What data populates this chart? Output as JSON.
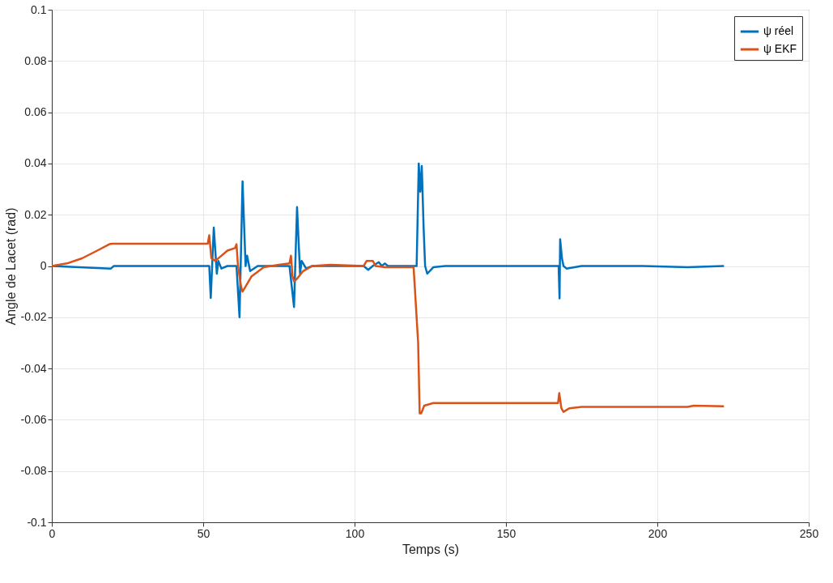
{
  "chart_data": {
    "type": "line",
    "xlabel": "Temps (s)",
    "ylabel": "Angle de Lacet (rad)",
    "xlim": [
      0,
      250
    ],
    "ylim": [
      -0.1,
      0.1
    ],
    "xticks": [
      0,
      50,
      100,
      150,
      200,
      250
    ],
    "yticks": [
      -0.1,
      -0.08,
      -0.06,
      -0.04,
      -0.02,
      0,
      0.02,
      0.04,
      0.06,
      0.08,
      0.1
    ],
    "grid": true,
    "legend": "top right",
    "line_style": "solid",
    "marker": "none",
    "series": [
      {
        "name": "ψ réel",
        "color": "#0072bd",
        "x": [
          0,
          19.5,
          20.5,
          52,
          52.5,
          53.5,
          54.5,
          55,
          56,
          58,
          61,
          62,
          63,
          64,
          64.5,
          65.5,
          68,
          78.5,
          80,
          81,
          82,
          82.5,
          84,
          86,
          103,
          104.5,
          106,
          108,
          109,
          110,
          111,
          120.5,
          121.2,
          121.7,
          122.2,
          122.8,
          123.3,
          124,
          126,
          130,
          167.4,
          167.7,
          167.9,
          168.5,
          169,
          170,
          175,
          195,
          210,
          222
        ],
        "values": [
          0,
          -0.001,
          0,
          0,
          -0.0125,
          0.015,
          -0.003,
          0.002,
          -0.001,
          0,
          0,
          -0.02,
          0.033,
          0,
          0.004,
          -0.002,
          0,
          0,
          -0.016,
          0.023,
          -0.003,
          0.002,
          -0.001,
          0,
          0,
          -0.0015,
          0,
          0.0015,
          0,
          0.001,
          0,
          0,
          0.04,
          0.029,
          0.039,
          0.015,
          0,
          -0.003,
          -0.0005,
          0,
          0,
          -0.0126,
          0.0104,
          0.003,
          0,
          -0.001,
          0,
          0,
          -0.0005,
          0
        ]
      },
      {
        "name": "ψ EKF",
        "color": "#d95319",
        "x": [
          0,
          5,
          10,
          15,
          19,
          20,
          51.5,
          52,
          52.7,
          54,
          56,
          58,
          60.5,
          61,
          61.5,
          62.5,
          63,
          64,
          66,
          70,
          75,
          78.5,
          79,
          79.5,
          80,
          81,
          83,
          86,
          92,
          103,
          104,
          106,
          107,
          110,
          119.5,
          121,
          121.5,
          122,
          123,
          126,
          130,
          167.2,
          167.6,
          168.3,
          169,
          171,
          175,
          195,
          210,
          212,
          222
        ],
        "values": [
          0,
          0.001,
          0.003,
          0.006,
          0.0085,
          0.0087,
          0.0087,
          0.012,
          0.003,
          0.002,
          0.004,
          0.006,
          0.007,
          0.0085,
          0,
          -0.008,
          -0.01,
          -0.008,
          -0.004,
          -0.0005,
          0.0005,
          0.001,
          0.004,
          -0.004,
          -0.006,
          -0.005,
          -0.002,
          0,
          0.0005,
          0,
          0.002,
          0.002,
          0,
          -0.0005,
          -0.0005,
          -0.03,
          -0.0575,
          -0.0575,
          -0.0545,
          -0.0535,
          -0.0535,
          -0.0535,
          -0.0496,
          -0.0555,
          -0.0569,
          -0.0555,
          -0.055,
          -0.055,
          -0.055,
          -0.0545,
          -0.0547
        ]
      }
    ]
  }
}
